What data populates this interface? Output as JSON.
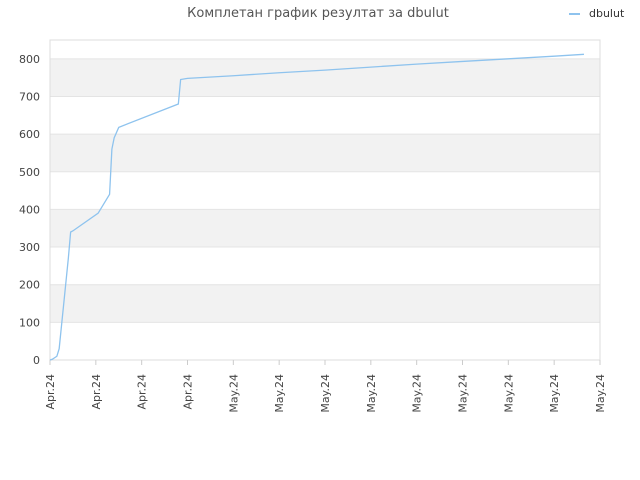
{
  "chart_data": {
    "type": "line",
    "title": "Комплетан график резултат за dbulut",
    "xlabel": "",
    "ylabel": "",
    "ylim": [
      0,
      850
    ],
    "yticks": [
      0,
      100,
      200,
      300,
      400,
      500,
      600,
      700,
      800
    ],
    "xtick_labels": [
      "Apr.24",
      "Apr.24",
      "Apr.24",
      "Apr.24",
      "May.24",
      "May.24",
      "May.24",
      "May.24",
      "May.24",
      "May.24",
      "May.24",
      "May.24",
      "May.24"
    ],
    "grid": "horizontal bands",
    "legend_position": "top-right",
    "series": [
      {
        "name": "dbulut",
        "color": "#8ec3ee",
        "x": [
          0,
          0.05,
          0.15,
          0.2,
          0.25,
          0.3,
          0.35,
          0.4,
          0.45,
          0.5,
          1.05,
          1.3,
          1.35,
          1.4,
          1.5,
          2.8,
          2.85,
          3.0,
          4.0,
          5.0,
          6.0,
          7.0,
          8.0,
          9.0,
          10.0,
          11.0,
          11.65
        ],
        "y": [
          0,
          2,
          10,
          30,
          90,
          150,
          210,
          270,
          340,
          343,
          390,
          440,
          560,
          590,
          618,
          680,
          745,
          748,
          755,
          763,
          770,
          778,
          786,
          793,
          800,
          807,
          812
        ]
      }
    ]
  }
}
